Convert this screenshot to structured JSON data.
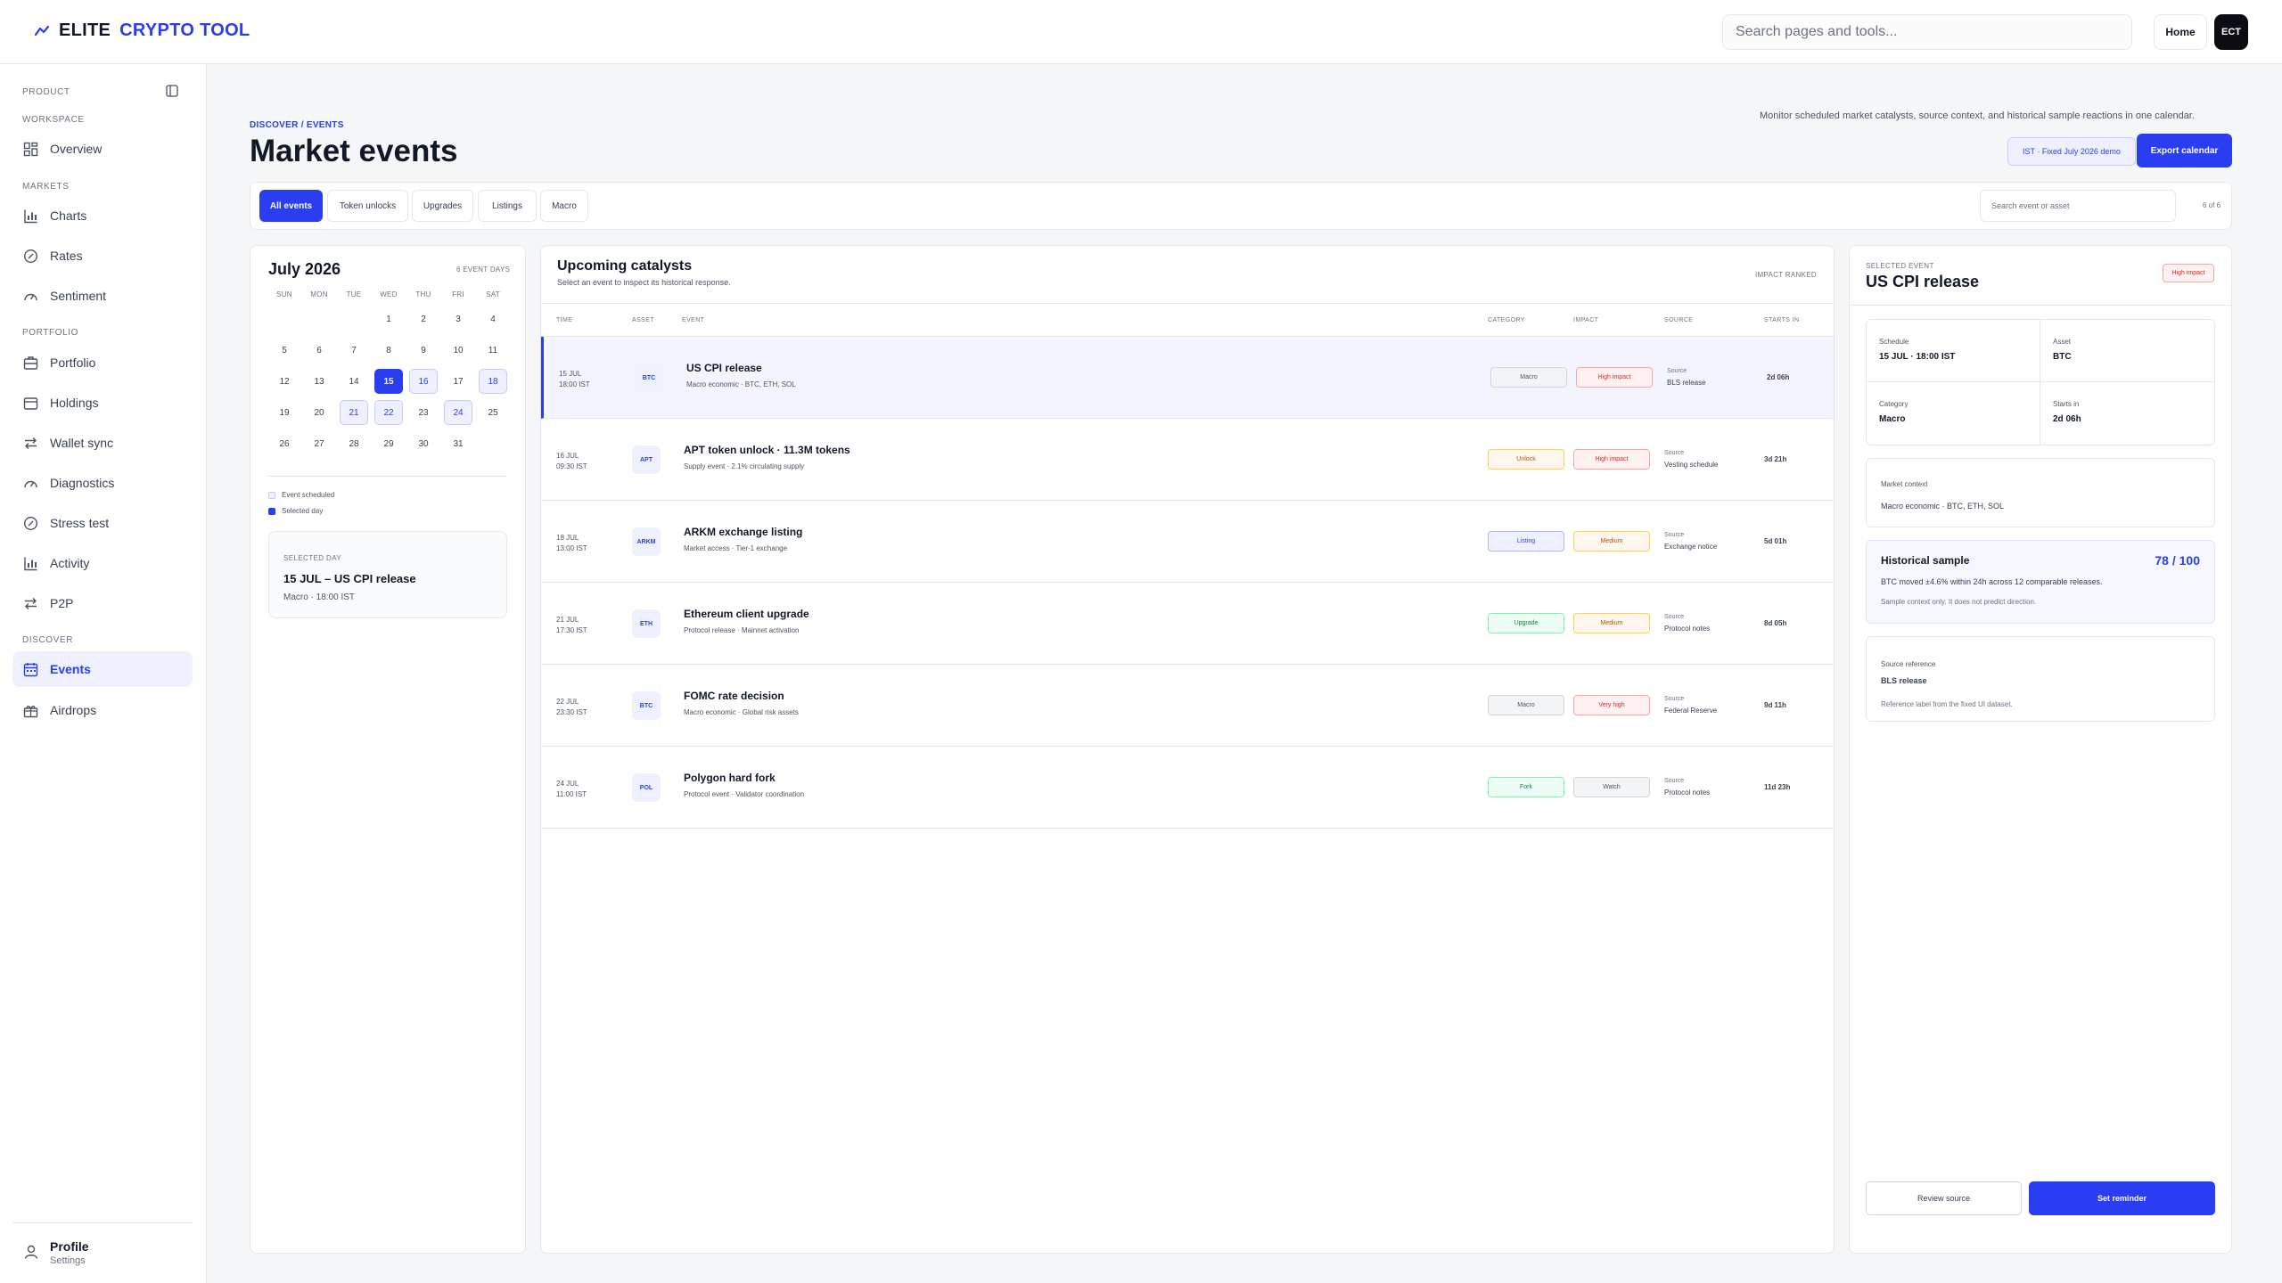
{
  "header": {
    "brand": "ELITE",
    "product": "CRYPTO TOOL",
    "search_placeholder": "Search pages and tools...",
    "home_label": "Home",
    "avatar_initials": "ECT"
  },
  "sidebar": {
    "product_label": "PRODUCT",
    "sections": [
      "WORKSPACE",
      "MARKETS",
      "PORTFOLIO",
      "DISCOVER"
    ],
    "items": [
      {
        "label": "Overview",
        "icon": "grid-icon"
      },
      {
        "label": "Charts",
        "icon": "chart-icon"
      },
      {
        "label": "Rates",
        "icon": "gauge-icon"
      },
      {
        "label": "Sentiment",
        "icon": "speedometer-icon"
      },
      {
        "label": "Portfolio",
        "icon": "briefcase-icon"
      },
      {
        "label": "Holdings",
        "icon": "wallet-icon"
      },
      {
        "label": "Wallet sync",
        "icon": "arrows-icon"
      },
      {
        "label": "Diagnostics",
        "icon": "speedometer-icon"
      },
      {
        "label": "Stress test",
        "icon": "gauge-icon"
      },
      {
        "label": "Activity",
        "icon": "chart-icon"
      },
      {
        "label": "P2P",
        "icon": "arrows-icon"
      },
      {
        "label": "Events",
        "icon": "calendar-icon"
      },
      {
        "label": "Airdrops",
        "icon": "gift-icon"
      }
    ],
    "profile": {
      "name": "Profile",
      "sub": "Settings"
    }
  },
  "page": {
    "breadcrumb": "DISCOVER / EVENTS",
    "title": "Market events",
    "description": "Monitor scheduled market catalysts, source context, and historical sample reactions in one calendar.",
    "timezone_badge": "IST · Fixed July 2026 demo",
    "export_label": "Export calendar"
  },
  "filters": {
    "tabs": [
      "All events",
      "Token unlocks",
      "Upgrades",
      "Listings",
      "Macro"
    ],
    "search_placeholder": "Search event or asset",
    "count": "6 of 6"
  },
  "calendar": {
    "month": "July 2026",
    "event_days_label": "6 EVENT DAYS",
    "weekdays": [
      "SUN",
      "MON",
      "TUE",
      "WED",
      "THU",
      "FRI",
      "SAT"
    ],
    "first_weekday": 3,
    "days_in_month": 31,
    "event_days": [
      15,
      16,
      18,
      21,
      22,
      24
    ],
    "selected_day": 15,
    "legend_scheduled": "Event scheduled",
    "legend_selected": "Selected day",
    "selected_label": "SELECTED DAY",
    "selected_title": "15 JUL – US CPI release",
    "selected_sub": "Macro · 18:00 IST"
  },
  "catalysts": {
    "title": "Upcoming catalysts",
    "subtitle": "Select an event to inspect its historical response.",
    "rank_label": "IMPACT RANKED",
    "columns": [
      "TIME",
      "ASSET",
      "EVENT",
      "CATEGORY",
      "IMPACT",
      "SOURCE",
      "STARTS IN"
    ],
    "source_label": "Source",
    "rows": [
      {
        "date": "15 JUL",
        "time": "18:00 IST",
        "asset": "BTC",
        "event": "US CPI release",
        "sub": "Macro economic · BTC, ETH, SOL",
        "category": "Macro",
        "impact": "High impact",
        "source": "BLS release",
        "starts": "2d 06h",
        "cat_style": "gray",
        "imp_style": "red"
      },
      {
        "date": "16 JUL",
        "time": "09:30 IST",
        "asset": "APT",
        "event": "APT token unlock · 11.3M tokens",
        "sub": "Supply event · 2.1% circulating supply",
        "category": "Unlock",
        "impact": "High impact",
        "source": "Vesting schedule",
        "starts": "3d 21h",
        "cat_style": "orange",
        "imp_style": "red"
      },
      {
        "date": "18 JUL",
        "time": "13:00 IST",
        "asset": "ARKM",
        "event": "ARKM exchange listing",
        "sub": "Market access · Tier-1 exchange",
        "category": "Listing",
        "impact": "Medium",
        "source": "Exchange notice",
        "starts": "5d 01h",
        "cat_style": "blue",
        "imp_style": "orange"
      },
      {
        "date": "21 JUL",
        "time": "17:30 IST",
        "asset": "ETH",
        "event": "Ethereum client upgrade",
        "sub": "Protocol release · Mainnet activation",
        "category": "Upgrade",
        "impact": "Medium",
        "source": "Protocol notes",
        "starts": "8d 05h",
        "cat_style": "green",
        "imp_style": "orange"
      },
      {
        "date": "22 JUL",
        "time": "23:30 IST",
        "asset": "BTC",
        "event": "FOMC rate decision",
        "sub": "Macro economic · Global risk assets",
        "category": "Macro",
        "impact": "Very high",
        "source": "Federal Reserve",
        "starts": "9d 11h",
        "cat_style": "gray",
        "imp_style": "red"
      },
      {
        "date": "24 JUL",
        "time": "11:00 IST",
        "asset": "POL",
        "event": "Polygon hard fork",
        "sub": "Protocol event · Validator coordination",
        "category": "Fork",
        "impact": "Watch",
        "source": "Protocol notes",
        "starts": "11d 23h",
        "cat_style": "green",
        "imp_style": "gray"
      }
    ]
  },
  "detail": {
    "label": "SELECTED EVENT",
    "title": "US CPI release",
    "badge": "High impact",
    "schedule_k": "Schedule",
    "schedule_v": "15 JUL · 18:00 IST",
    "asset_k": "Asset",
    "asset_v": "BTC",
    "category_k": "Category",
    "category_v": "Macro",
    "starts_k": "Starts in",
    "starts_v": "2d 06h",
    "context_k": "Market context",
    "context_v": "Macro economic · BTC, ETH, SOL",
    "hist_title": "Historical sample",
    "hist_score": "78 / 100",
    "hist_text": "BTC moved ±4.6% within 24h across 12 comparable releases.",
    "hist_note": "Sample context only. It does not predict direction.",
    "ref_k": "Source reference",
    "ref_v": "BLS release",
    "ref_note": "Reference label from the fixed UI dataset.",
    "review_label": "Review source",
    "reminder_label": "Set reminder"
  },
  "colors": {
    "accent": "#2b3df0",
    "accent_soft": "#eef0fe",
    "danger": "#dc2626"
  }
}
